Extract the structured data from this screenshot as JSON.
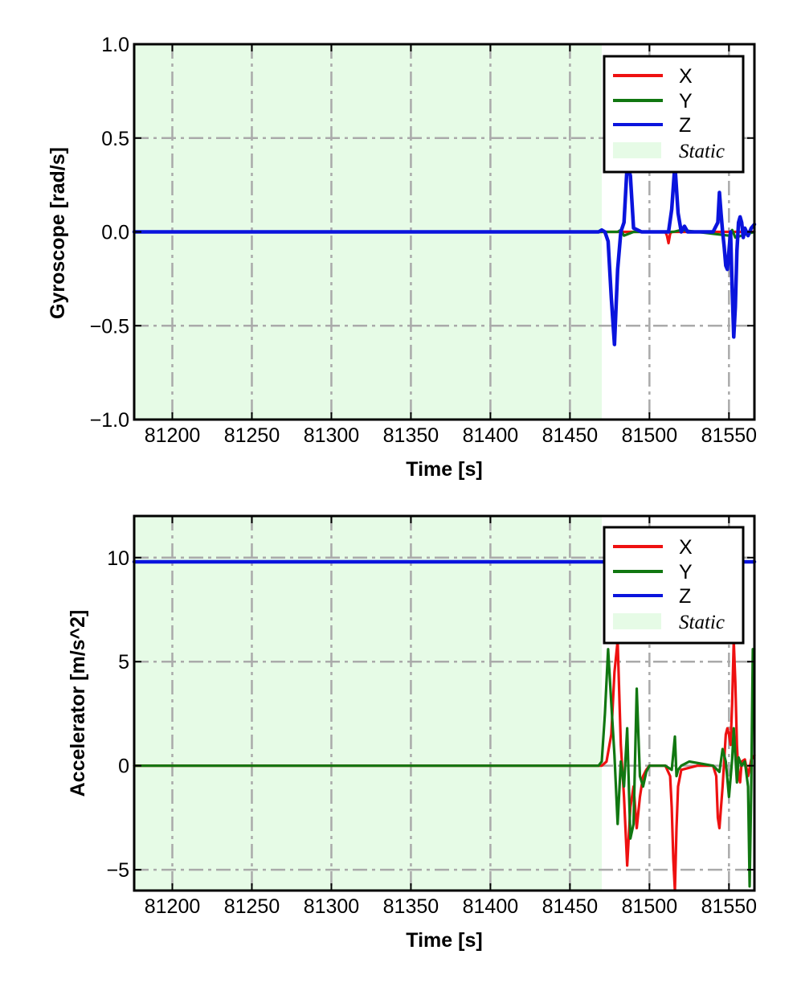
{
  "colors": {
    "X": "#ee1111",
    "Y": "#117711",
    "Z": "#0a14dd",
    "static_fill": "#e6fbe6",
    "grid": "#aaaaaa"
  },
  "chart_data": [
    {
      "type": "line",
      "xlabel": "Time [s]",
      "ylabel": "Gyroscope [rad/s]",
      "xlim": [
        81176,
        81566
      ],
      "ylim": [
        -1.0,
        1.0
      ],
      "xticks": [
        81200,
        81250,
        81300,
        81350,
        81400,
        81450,
        81500,
        81550
      ],
      "yticks": [
        -1.0,
        -0.5,
        0.0,
        0.5,
        1.0
      ],
      "ytick_labels": [
        "−1.0",
        "−0.5",
        "0.0",
        "0.5",
        "1.0"
      ],
      "grid": true,
      "legend_position": "top-right",
      "legend": [
        "X",
        "Y",
        "Z",
        "Static"
      ],
      "static_region": [
        81176,
        81470
      ],
      "series": [
        {
          "name": "X",
          "x": [
            81176,
            81470,
            81510,
            81511,
            81512,
            81513,
            81514,
            81520,
            81566
          ],
          "y": [
            0,
            0,
            0,
            -0.02,
            -0.06,
            -0.01,
            0,
            0,
            0
          ]
        },
        {
          "name": "Y",
          "x": [
            81176,
            81470,
            81480,
            81482,
            81484,
            81490,
            81515,
            81520,
            81550,
            81552,
            81554,
            81566
          ],
          "y": [
            0,
            0,
            0,
            0.01,
            -0.02,
            0,
            0,
            0.01,
            -0.02,
            0.01,
            -0.03,
            0
          ]
        },
        {
          "name": "Z",
          "x": [
            81176,
            81468,
            81470,
            81472,
            81474,
            81476,
            81478,
            81480,
            81482,
            81484,
            81486,
            81488,
            81490,
            81495,
            81505,
            81512,
            81514,
            81516,
            81518,
            81520,
            81522,
            81524,
            81530,
            81540,
            81543,
            81544,
            81545,
            81546,
            81547,
            81548,
            81549,
            81550,
            81551,
            81552,
            81553,
            81554,
            81555,
            81556,
            81557,
            81558,
            81559,
            81560,
            81562,
            81564,
            81566
          ],
          "y": [
            0,
            0,
            0.01,
            0,
            -0.05,
            -0.35,
            -0.6,
            -0.2,
            0,
            0.05,
            0.36,
            0.3,
            0.02,
            0,
            0,
            0,
            0.12,
            0.36,
            0.1,
            0,
            0.03,
            0,
            0,
            0,
            0.05,
            0.21,
            0.1,
            0,
            -0.08,
            -0.18,
            -0.2,
            -0.1,
            0,
            -0.3,
            -0.56,
            -0.4,
            -0.1,
            0.05,
            0.08,
            0.05,
            -0.03,
            0.02,
            -0.02,
            0.02,
            0.04
          ]
        }
      ]
    },
    {
      "type": "line",
      "xlabel": "Time [s]",
      "ylabel": "Accelerator [m/s^2]",
      "xlim": [
        81176,
        81566
      ],
      "ylim": [
        -6.0,
        12.0
      ],
      "xticks": [
        81200,
        81250,
        81300,
        81350,
        81400,
        81450,
        81500,
        81550
      ],
      "yticks": [
        -5,
        0,
        5,
        10
      ],
      "ytick_labels": [
        "−5",
        "0",
        "5",
        "10"
      ],
      "grid": true,
      "legend_position": "top-right",
      "legend": [
        "X",
        "Y",
        "Z",
        "Static"
      ],
      "static_region": [
        81176,
        81470
      ],
      "series": [
        {
          "name": "X",
          "x": [
            81176,
            81470,
            81473,
            81476,
            81478,
            81480,
            81482,
            81484,
            81486,
            81488,
            81490,
            81492,
            81494,
            81496,
            81498,
            81500,
            81510,
            81513,
            81514,
            81515,
            81516,
            81517,
            81518,
            81520,
            81530,
            81540,
            81542,
            81543,
            81544,
            81546,
            81548,
            81549,
            81550,
            81551,
            81552,
            81553,
            81554,
            81555,
            81556,
            81557,
            81558,
            81560,
            81562,
            81564,
            81566
          ],
          "y": [
            0,
            0,
            0.2,
            1.5,
            4.5,
            6.0,
            1.0,
            -1.5,
            -4.8,
            -2.0,
            -1.0,
            -3.0,
            -1.5,
            -0.5,
            -0.2,
            0,
            0,
            -0.5,
            -2.0,
            -4.5,
            -6.0,
            -3.0,
            -1.0,
            -0.2,
            0,
            0,
            -0.5,
            -2.5,
            -3.0,
            -1.0,
            1.5,
            1.8,
            1.5,
            1.0,
            3.0,
            6.0,
            4.0,
            1.0,
            -0.5,
            -0.8,
            0.2,
            0.3,
            -0.5,
            0.3,
            0.5
          ]
        },
        {
          "name": "Y",
          "x": [
            81176,
            81468,
            81470,
            81472,
            81474,
            81476,
            81478,
            81480,
            81482,
            81484,
            81486,
            81488,
            81490,
            81492,
            81494,
            81496,
            81498,
            81500,
            81510,
            81514,
            81516,
            81517,
            81518,
            81520,
            81525,
            81540,
            81544,
            81546,
            81548,
            81550,
            81552,
            81553,
            81554,
            81555,
            81556,
            81558,
            81560,
            81562,
            81563,
            81564,
            81565,
            81566
          ],
          "y": [
            0,
            0,
            0.2,
            2.5,
            5.6,
            3.0,
            0.5,
            -2.8,
            0.2,
            -1.0,
            1.8,
            -3.5,
            -2.8,
            3.7,
            -0.5,
            -1.0,
            -0.3,
            0,
            0,
            -0.2,
            1.4,
            -0.5,
            -0.2,
            0,
            0.2,
            0,
            -0.3,
            0.8,
            0.2,
            -1.5,
            0.3,
            1.8,
            0.5,
            -0.8,
            0.4,
            0,
            0.2,
            -1.0,
            -5.8,
            -1.0,
            5.6,
            5.6
          ]
        },
        {
          "name": "Z",
          "x": [
            81176,
            81300,
            81400,
            81470,
            81500,
            81550,
            81566
          ],
          "y": [
            9.8,
            9.8,
            9.8,
            9.8,
            9.8,
            9.8,
            9.8
          ]
        }
      ]
    }
  ]
}
